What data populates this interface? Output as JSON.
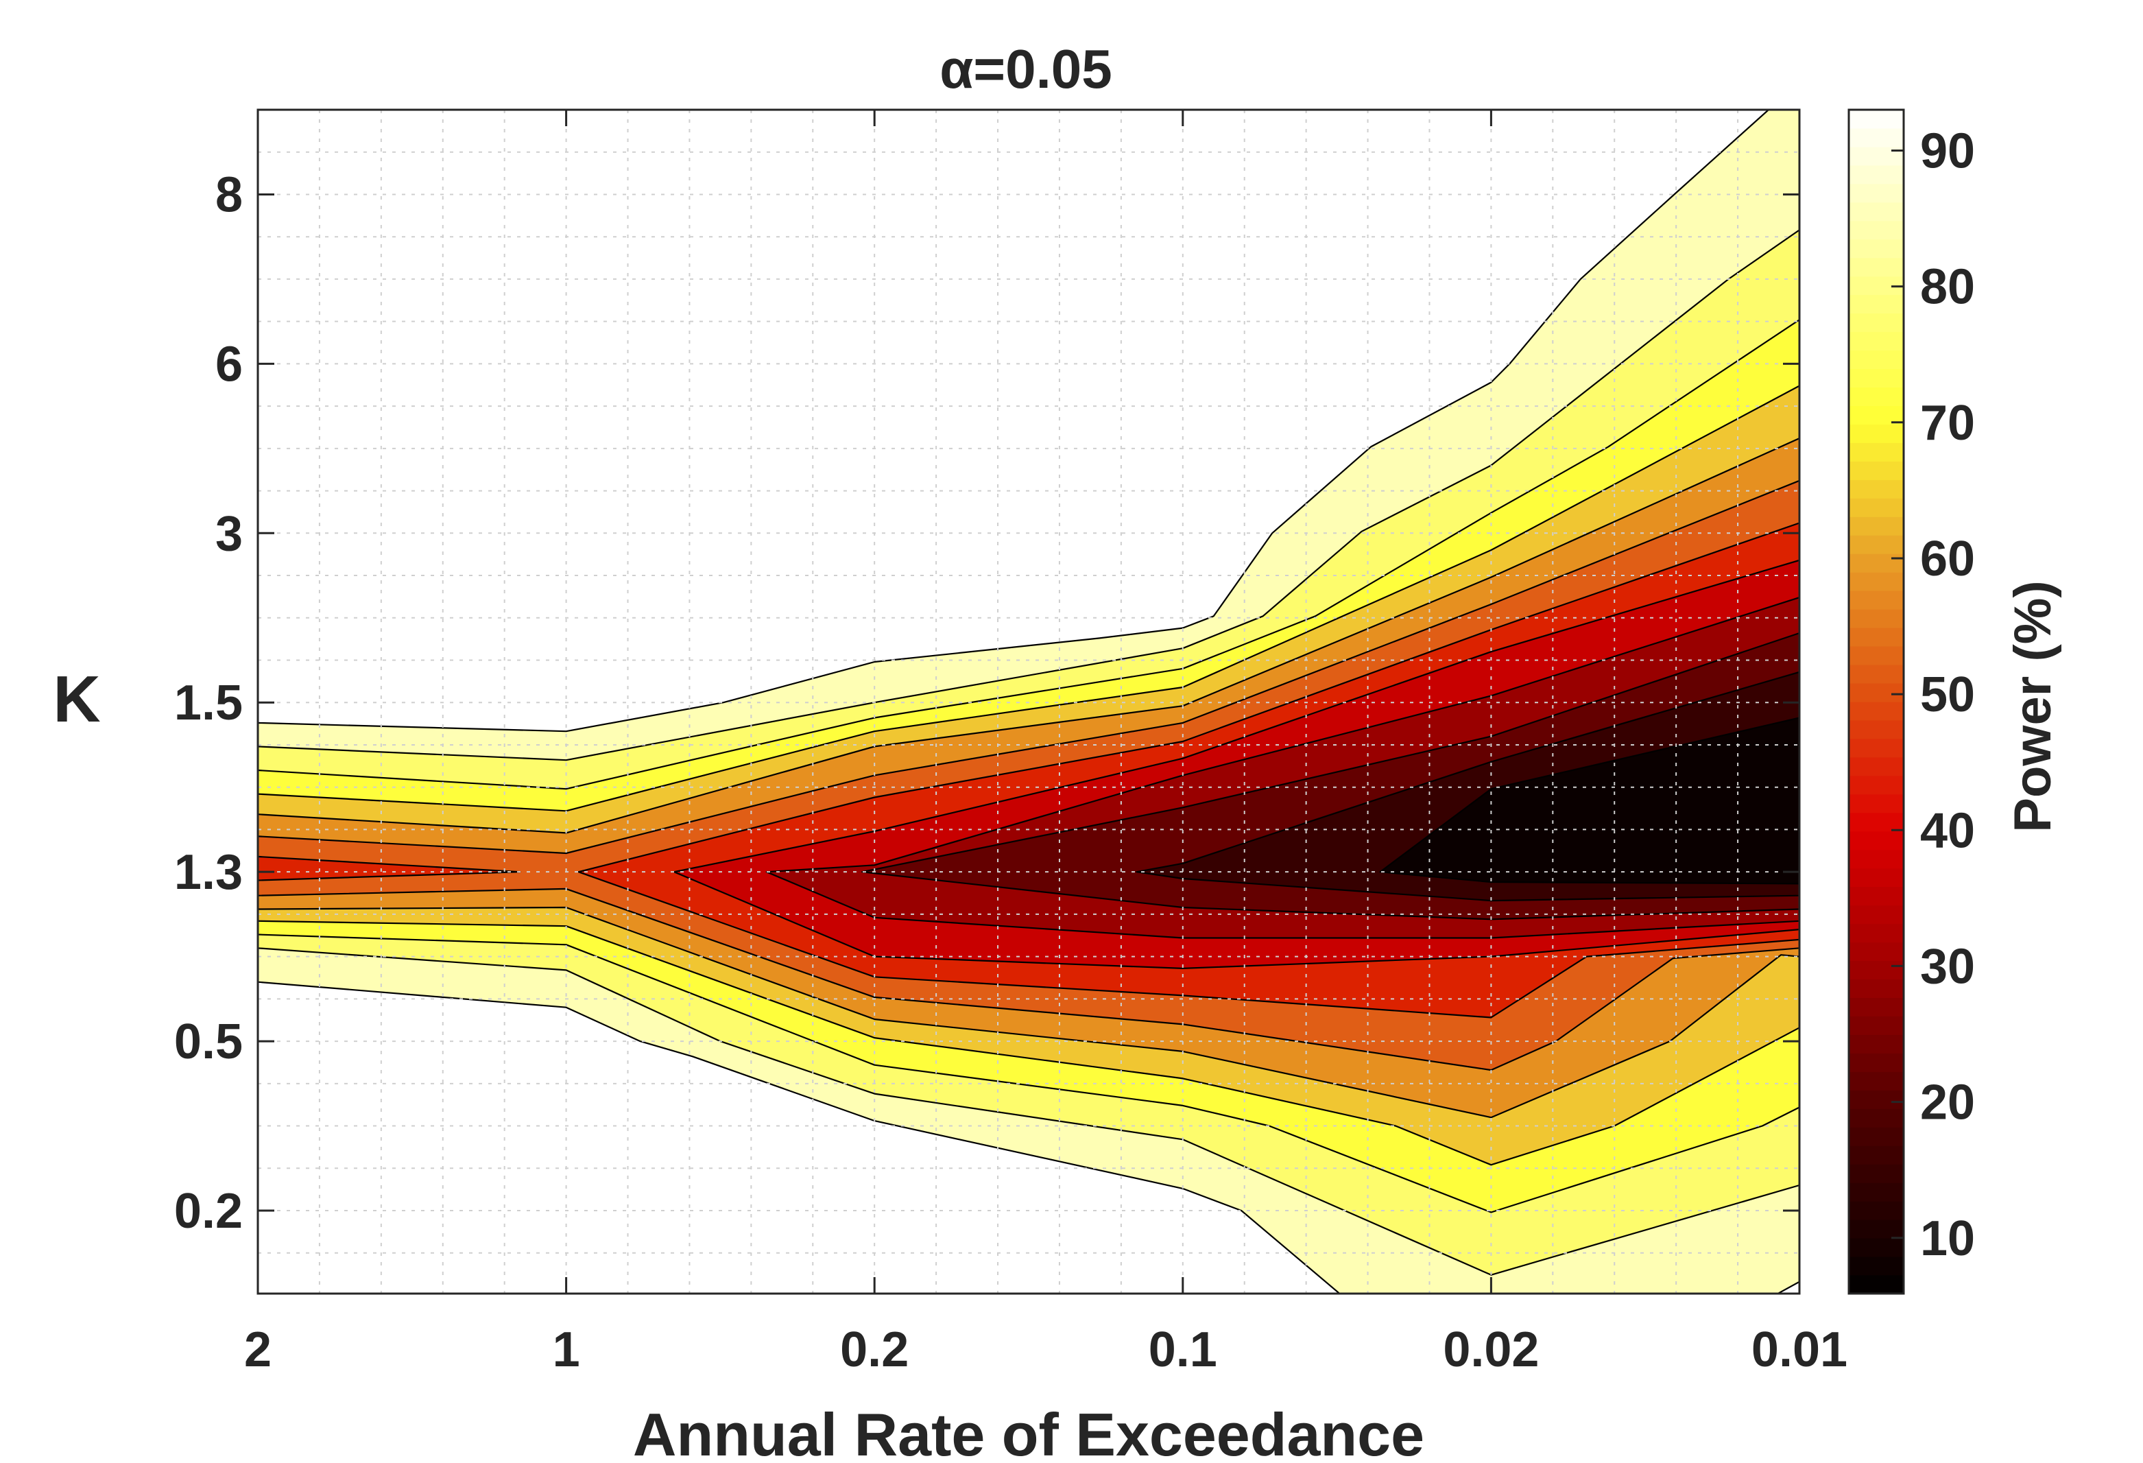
{
  "chart_data": {
    "type": "contour",
    "title": "α=0.05",
    "xlabel": "Annual Rate of Exceedance",
    "ylabel": "K",
    "colorbar_label": "Power (%)",
    "x_categories": [
      "2",
      "1",
      "0.2",
      "0.1",
      "0.02",
      "0.01"
    ],
    "y_categories": [
      "0.2",
      "0.5",
      "1.3",
      "1.5",
      "3",
      "6",
      "8"
    ],
    "y_range_index": [
      -0.49,
      6.5
    ],
    "colorbar_range": [
      5.9,
      93
    ],
    "colorbar_ticks": [
      "10",
      "20",
      "30",
      "40",
      "50",
      "60",
      "70",
      "80",
      "90"
    ],
    "colormap_stops": [
      [
        5.9,
        "#000000"
      ],
      [
        10,
        "#1a0000"
      ],
      [
        20,
        "#550000"
      ],
      [
        30,
        "#a00000"
      ],
      [
        40,
        "#dd0000"
      ],
      [
        50,
        "#e05010"
      ],
      [
        60,
        "#e8a028"
      ],
      [
        70,
        "#ffff33"
      ],
      [
        80,
        "#ffff88"
      ],
      [
        93,
        "#ffffff"
      ]
    ],
    "grid": true,
    "coordinate_note": "contour points are [x category index, y category index]",
    "regions": [
      {
        "level": 86,
        "color": "#fefeb4",
        "points": [
          [
            0,
            2.88
          ],
          [
            1,
            2.83
          ],
          [
            1.51,
            3.0
          ],
          [
            2,
            3.24
          ],
          [
            2.73,
            3.38
          ],
          [
            3,
            3.44
          ],
          [
            3.1,
            3.51
          ],
          [
            3.29,
            4.0
          ],
          [
            3.61,
            4.51
          ],
          [
            4,
            4.89
          ],
          [
            4.06,
            5.0
          ],
          [
            4.29,
            5.5
          ],
          [
            4.6,
            6.01
          ],
          [
            4.9,
            6.5
          ],
          [
            5.1,
            7
          ],
          [
            5.1,
            -0.4
          ],
          [
            5,
            -0.42
          ],
          [
            4.82,
            -0.6
          ],
          [
            3.58,
            -0.6
          ],
          [
            3.19,
            0
          ],
          [
            3,
            0.13
          ],
          [
            2,
            0.53
          ],
          [
            1.41,
            0.91
          ],
          [
            1.24,
            1.0
          ],
          [
            1,
            1.2
          ],
          [
            0,
            1.35
          ]
        ]
      },
      {
        "level": 79,
        "color": "#fdfc6c",
        "points": [
          [
            0,
            2.74
          ],
          [
            1,
            2.66
          ],
          [
            2,
            3.0
          ],
          [
            3,
            3.32
          ],
          [
            3.26,
            3.51
          ],
          [
            3.58,
            4.01
          ],
          [
            4,
            4.4
          ],
          [
            4.77,
            5.5
          ],
          [
            5,
            5.79
          ],
          [
            5,
            0.15
          ],
          [
            4,
            -0.38
          ],
          [
            3,
            0.42
          ],
          [
            2,
            0.69
          ],
          [
            1.5,
            1.0
          ],
          [
            1,
            1.42
          ],
          [
            0,
            1.55
          ]
        ]
      },
      {
        "level": 72,
        "color": "#fefe3c",
        "points": [
          [
            0,
            2.6
          ],
          [
            1,
            2.49
          ],
          [
            2,
            2.91
          ],
          [
            3,
            3.2
          ],
          [
            3.43,
            3.51
          ],
          [
            4,
            4.12
          ],
          [
            4.38,
            4.51
          ],
          [
            5,
            5.26
          ],
          [
            5,
            0.61
          ],
          [
            4.88,
            0.5
          ],
          [
            4,
            -0.01
          ],
          [
            3.28,
            0.5
          ],
          [
            3,
            0.62
          ],
          [
            2,
            0.86
          ],
          [
            1,
            1.57
          ],
          [
            0,
            1.63
          ]
        ]
      },
      {
        "level": 65,
        "color": "#f0c632",
        "points": [
          [
            0,
            2.46
          ],
          [
            1,
            2.36
          ],
          [
            2,
            2.83
          ],
          [
            3,
            3.09
          ],
          [
            4,
            3.9
          ],
          [
            5,
            4.87
          ],
          [
            5,
            1.08
          ],
          [
            4.4,
            0.5
          ],
          [
            4,
            0.27
          ],
          [
            3.69,
            0.5
          ],
          [
            3,
            0.78
          ],
          [
            2,
            1.02
          ],
          [
            1,
            1.68
          ],
          [
            0,
            1.71
          ]
        ]
      },
      {
        "level": 58,
        "color": "#e69020",
        "points": [
          [
            0,
            2.34
          ],
          [
            1,
            2.23
          ],
          [
            2,
            2.74
          ],
          [
            3,
            2.98
          ],
          [
            4,
            3.74
          ],
          [
            5,
            4.56
          ],
          [
            5,
            1.5
          ],
          [
            4.94,
            1.51
          ],
          [
            4.58,
            1.0
          ],
          [
            4,
            0.55
          ],
          [
            3,
            0.94
          ],
          [
            2,
            1.13
          ],
          [
            1,
            1.79
          ],
          [
            0,
            1.78
          ]
        ]
      },
      {
        "level": 51,
        "color": "#e05e16",
        "points": [
          [
            0,
            2.21
          ],
          [
            1,
            2.11
          ],
          [
            2,
            2.57
          ],
          [
            3,
            2.88
          ],
          [
            4,
            3.58
          ],
          [
            5,
            4.31
          ],
          [
            5,
            1.55
          ],
          [
            4.59,
            1.49
          ],
          [
            4.21,
            1.0
          ],
          [
            4,
            0.83
          ],
          [
            3,
            1.1
          ],
          [
            2,
            1.26
          ],
          [
            1,
            1.9
          ],
          [
            0,
            1.86
          ]
        ]
      },
      {
        "level": 44,
        "color": "#dc2200",
        "points": [
          [
            0,
            2.09
          ],
          [
            0.85,
            2.0
          ],
          [
            0,
            1.95
          ]
        ]
      },
      {
        "level": 44,
        "color": "#dc2200",
        "points": [
          [
            1.04,
            2.0
          ],
          [
            2,
            2.44
          ],
          [
            3,
            2.77
          ],
          [
            4,
            3.43
          ],
          [
            5,
            4.06
          ],
          [
            5,
            1.6
          ],
          [
            4.31,
            1.5
          ],
          [
            4,
            1.14
          ],
          [
            3,
            1.27
          ],
          [
            2,
            1.38
          ]
        ]
      },
      {
        "level": 37,
        "color": "#c80000",
        "points": [
          [
            1.35,
            2.0
          ],
          [
            2,
            2.24
          ],
          [
            3,
            2.67
          ],
          [
            4,
            3.3
          ],
          [
            5,
            3.84
          ],
          [
            5,
            1.66
          ],
          [
            4,
            1.5
          ],
          [
            3,
            1.43
          ],
          [
            2,
            1.5
          ]
        ]
      },
      {
        "level": 30,
        "color": "#990000",
        "points": [
          [
            1.65,
            2.0
          ],
          [
            2,
            2.04
          ],
          [
            3,
            2.57
          ],
          [
            4,
            3.04
          ],
          [
            5,
            3.62
          ],
          [
            5,
            1.71
          ],
          [
            4,
            1.61
          ],
          [
            3,
            1.61
          ],
          [
            2,
            1.73
          ]
        ]
      },
      {
        "level": 23,
        "color": "#640000",
        "points": [
          [
            1.96,
            2.0
          ],
          [
            3,
            2.38
          ],
          [
            4,
            2.8
          ],
          [
            5,
            3.41
          ],
          [
            5,
            1.78
          ],
          [
            4,
            1.72
          ],
          [
            3,
            1.79
          ]
        ]
      },
      {
        "level": 16,
        "color": "#360000",
        "points": [
          [
            2.85,
            2.0
          ],
          [
            3,
            2.05
          ],
          [
            4,
            2.65
          ],
          [
            5,
            3.18
          ],
          [
            5,
            1.86
          ],
          [
            4,
            1.83
          ],
          [
            3,
            1.96
          ]
        ]
      },
      {
        "level": 9,
        "color": "#0a0000",
        "points": [
          [
            3.64,
            2.0
          ],
          [
            4,
            2.49
          ],
          [
            5,
            2.91
          ],
          [
            5,
            1.93
          ],
          [
            4,
            1.94
          ]
        ]
      }
    ]
  }
}
